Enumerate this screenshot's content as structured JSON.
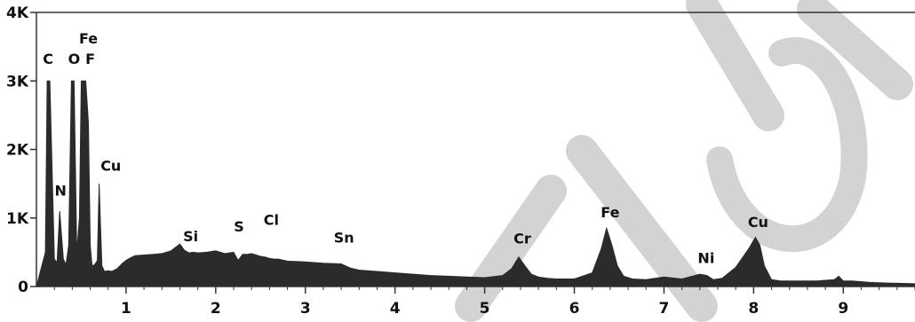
{
  "chart_data": {
    "type": "area",
    "title": "",
    "xlabel": "",
    "ylabel": "",
    "xlim": [
      0,
      9.8
    ],
    "ylim": [
      0,
      4000
    ],
    "x_ticks": [
      1,
      2,
      3,
      4,
      5,
      6,
      7,
      8,
      9
    ],
    "y_ticks": [
      {
        "value": 0,
        "label": "0"
      },
      {
        "value": 1000,
        "label": "1K"
      },
      {
        "value": 2000,
        "label": "2K"
      },
      {
        "value": 3000,
        "label": "3K"
      },
      {
        "value": 4000,
        "label": "4K"
      }
    ],
    "fill_color": "#2b2b2b",
    "watermark_color": "#c8c8c8",
    "series": [
      {
        "x": [
          0,
          0.1,
          0.12,
          0.15,
          0.2,
          0.23,
          0.26,
          0.3,
          0.33,
          0.36,
          0.39,
          0.42,
          0.45,
          0.48,
          0.5,
          0.52,
          0.55,
          0.58,
          0.6,
          0.62,
          0.65,
          0.68,
          0.7,
          0.73,
          0.76,
          0.8,
          0.84,
          0.87,
          0.9,
          0.93,
          0.96,
          1.0,
          1.05,
          1.1,
          1.2,
          1.3,
          1.4,
          1.5,
          1.6,
          1.65,
          1.7,
          1.75,
          1.8,
          1.9,
          2.0,
          2.1,
          2.2,
          2.25,
          2.3,
          2.35,
          2.4,
          2.5,
          2.55,
          2.6,
          2.65,
          2.7,
          2.8,
          3.0,
          3.2,
          3.4,
          3.45,
          3.5,
          3.6,
          3.8,
          4.0,
          4.2,
          4.4,
          4.6,
          4.8,
          5.0,
          5.2,
          5.3,
          5.38,
          5.45,
          5.52,
          5.6,
          5.7,
          5.8,
          6.0,
          6.2,
          6.3,
          6.36,
          6.42,
          6.48,
          6.55,
          6.65,
          6.8,
          7.0,
          7.2,
          7.4,
          7.48,
          7.55,
          7.65,
          7.8,
          7.95,
          8.02,
          8.07,
          8.12,
          8.2,
          8.3,
          8.5,
          8.7,
          8.9,
          8.95,
          9.0,
          9.1,
          9.3,
          9.5,
          9.8
        ],
        "y": [
          0,
          500,
          3000,
          3000,
          400,
          350,
          1100,
          400,
          320,
          600,
          3000,
          3000,
          500,
          1000,
          3000,
          3000,
          3000,
          2400,
          600,
          300,
          320,
          380,
          1500,
          300,
          220,
          230,
          220,
          240,
          260,
          300,
          340,
          380,
          420,
          450,
          460,
          470,
          480,
          520,
          620,
          530,
          490,
          500,
          490,
          500,
          520,
          480,
          500,
          380,
          470,
          470,
          480,
          440,
          430,
          410,
          400,
          400,
          370,
          360,
          340,
          330,
          300,
          270,
          240,
          220,
          200,
          180,
          160,
          150,
          140,
          130,
          160,
          260,
          430,
          300,
          180,
          140,
          120,
          110,
          110,
          200,
          550,
          850,
          600,
          300,
          150,
          110,
          100,
          140,
          110,
          180,
          160,
          100,
          120,
          280,
          560,
          720,
          600,
          300,
          100,
          80,
          80,
          80,
          100,
          150,
          80,
          80,
          60,
          50,
          40
        ]
      }
    ],
    "annotations": [
      {
        "text": "C",
        "x": 0.13,
        "y": 3250
      },
      {
        "text": "O",
        "x": 0.42,
        "y": 3250
      },
      {
        "text": "Fe",
        "x": 0.58,
        "y": 3550
      },
      {
        "text": "F",
        "x": 0.6,
        "y": 3250
      },
      {
        "text": "N",
        "x": 0.27,
        "y": 1330
      },
      {
        "text": "Cu",
        "x": 0.83,
        "y": 1690
      },
      {
        "text": "Si",
        "x": 1.72,
        "y": 660
      },
      {
        "text": "S",
        "x": 2.26,
        "y": 800
      },
      {
        "text": "Cl",
        "x": 2.62,
        "y": 900
      },
      {
        "text": "Sn",
        "x": 3.43,
        "y": 640
      },
      {
        "text": "Cr",
        "x": 5.42,
        "y": 630
      },
      {
        "text": "Fe",
        "x": 6.4,
        "y": 1010
      },
      {
        "text": "Ni",
        "x": 7.47,
        "y": 340
      },
      {
        "text": "Cu",
        "x": 8.05,
        "y": 870
      }
    ]
  }
}
